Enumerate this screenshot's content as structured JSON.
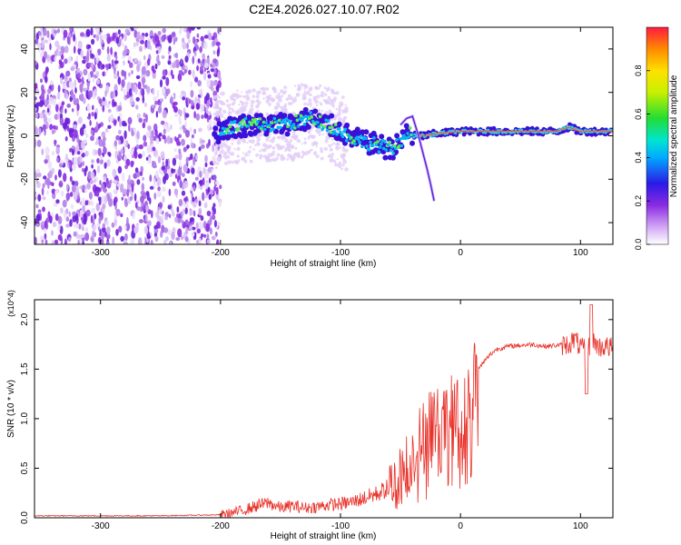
{
  "title": "C2E4.2026.027.10.07.R02",
  "chart_data": [
    {
      "type": "heatmap",
      "xlabel": "Height of straight line (km)",
      "ylabel": "Frequency (Hz)",
      "xlim": [
        -355,
        127
      ],
      "ylim": [
        -50,
        50
      ],
      "xticks": [
        -300,
        -200,
        -100,
        0,
        100
      ],
      "xtick_labels": [
        "-300",
        "-200",
        "-100",
        "0",
        "100"
      ],
      "yticks": [
        -40,
        -20,
        0,
        20,
        40
      ],
      "ytick_labels": [
        "-40",
        "-20",
        "0",
        "20",
        "40"
      ],
      "colorbar": {
        "label": "Normalized spectral amplitude",
        "range": [
          0,
          1
        ],
        "ticks": [
          0.0,
          0.2,
          0.4,
          0.6,
          0.8
        ],
        "tick_labels": [
          "0.0",
          "0.2",
          "0.4",
          "0.6",
          "0.8"
        ]
      },
      "noise_region": {
        "x_range": [
          -355,
          -200
        ],
        "freq_range": [
          -50,
          50
        ]
      },
      "ridge": [
        [
          -200,
          3
        ],
        [
          -180,
          5
        ],
        [
          -160,
          5
        ],
        [
          -140,
          6
        ],
        [
          -125,
          8
        ],
        [
          -110,
          5
        ],
        [
          -100,
          2
        ],
        [
          -90,
          -1
        ],
        [
          -80,
          -3
        ],
        [
          -70,
          -4
        ],
        [
          -60,
          -6
        ],
        [
          -50,
          -4
        ],
        [
          -45,
          2
        ],
        [
          -40,
          0
        ],
        [
          -30,
          0
        ],
        [
          -20,
          1
        ],
        [
          0,
          2
        ],
        [
          20,
          2
        ],
        [
          40,
          2
        ],
        [
          60,
          2
        ],
        [
          80,
          2
        ],
        [
          90,
          4
        ],
        [
          100,
          2
        ],
        [
          127,
          2
        ]
      ],
      "branch": [
        [
          -50,
          5
        ],
        [
          -45,
          8
        ],
        [
          -40,
          9
        ],
        [
          -35,
          0
        ],
        [
          -28,
          -15
        ],
        [
          -25,
          -22
        ],
        [
          -22,
          -30
        ]
      ]
    },
    {
      "type": "line",
      "xlabel": "Height of straight line (km)",
      "ylabel": "SNR (10 * v/v)",
      "scale_label": "(x10^4)",
      "xlim": [
        -355,
        127
      ],
      "ylim": [
        0,
        2.2
      ],
      "xticks": [
        -300,
        -200,
        -100,
        0,
        100
      ],
      "xtick_labels": [
        "-300",
        "-200",
        "-100",
        "0",
        "100"
      ],
      "yticks": [
        0.0,
        0.5,
        1.0,
        1.5,
        2.0
      ],
      "ytick_labels": [
        "0.0",
        "0.5",
        "1.0",
        "1.5",
        "2.0"
      ],
      "color": "#e8322a",
      "x": [
        -355,
        -300,
        -250,
        -200,
        -190,
        -180,
        -170,
        -160,
        -150,
        -140,
        -130,
        -120,
        -110,
        -100,
        -90,
        -80,
        -70,
        -60,
        -50,
        -40,
        -30,
        -25,
        -20,
        -15,
        -10,
        -5,
        0,
        5,
        10,
        15,
        20,
        25,
        30,
        40,
        50,
        60,
        70,
        80,
        90,
        95,
        100,
        105,
        110,
        115,
        120,
        127
      ],
      "y": [
        0.02,
        0.02,
        0.02,
        0.03,
        0.05,
        0.08,
        0.12,
        0.15,
        0.1,
        0.12,
        0.1,
        0.11,
        0.13,
        0.14,
        0.16,
        0.2,
        0.24,
        0.3,
        0.42,
        0.65,
        0.85,
        1.0,
        0.95,
        0.9,
        1.0,
        1.1,
        0.95,
        1.1,
        1.35,
        1.5,
        1.58,
        1.65,
        1.7,
        1.73,
        1.74,
        1.75,
        1.73,
        1.74,
        1.75,
        1.8,
        1.72,
        1.68,
        1.8,
        1.72,
        1.73,
        1.71
      ]
    }
  ]
}
